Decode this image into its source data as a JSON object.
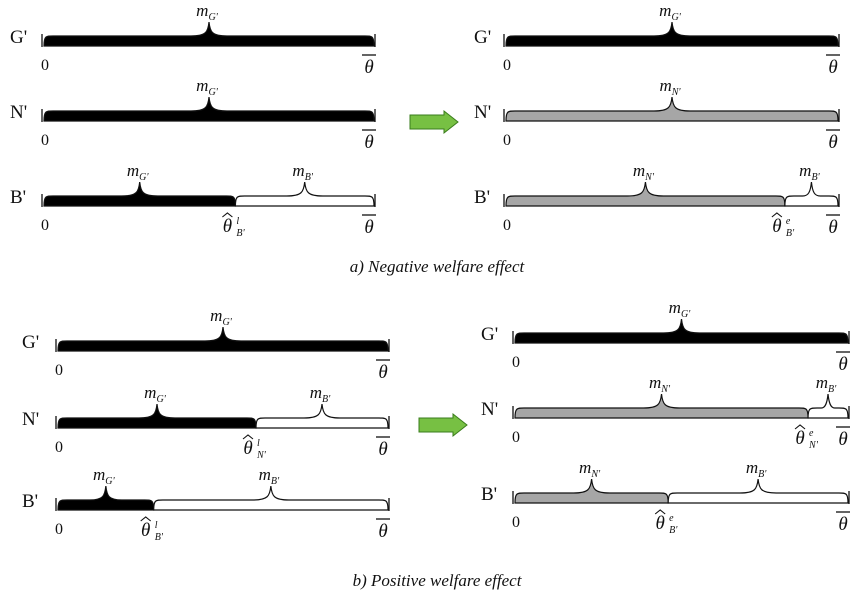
{
  "colors": {
    "black_segment": "#000000",
    "gray_segment": "#a6a6a6",
    "white_segment": "#ffffff",
    "arrow_fill": "#77c043",
    "arrow_stroke": "#3a7d1c"
  },
  "captions": {
    "a": "a)  Negative welfare effect",
    "b": "b)  Positive welfare effect"
  },
  "axis": {
    "zero": "0",
    "theta": "θ"
  },
  "panels": [
    {
      "id": "a-left",
      "rows": [
        {
          "label": "G'",
          "segments": [
            {
              "fill": "black",
              "m": "m",
              "sub": "G'",
              "start": 0,
              "end": 1
            }
          ],
          "threshold": null
        },
        {
          "label": "N'",
          "segments": [
            {
              "fill": "black",
              "m": "m",
              "sub": "G'",
              "start": 0,
              "end": 1
            }
          ],
          "threshold": null
        },
        {
          "label": "B'",
          "segments": [
            {
              "fill": "black",
              "m": "m",
              "sub": "G'",
              "start": 0,
              "end": 0.58
            },
            {
              "fill": "white",
              "m": "m",
              "sub": "B'",
              "start": 0.58,
              "end": 1
            }
          ],
          "threshold": {
            "sym": "θ",
            "sup": "l",
            "sub": "B'",
            "at": 0.58
          }
        }
      ]
    },
    {
      "id": "a-right",
      "rows": [
        {
          "label": "G'",
          "segments": [
            {
              "fill": "black",
              "m": "m",
              "sub": "G'",
              "start": 0,
              "end": 1
            }
          ],
          "threshold": null
        },
        {
          "label": "N'",
          "segments": [
            {
              "fill": "gray",
              "m": "m",
              "sub": "N'",
              "start": 0,
              "end": 1
            }
          ],
          "threshold": null
        },
        {
          "label": "B'",
          "segments": [
            {
              "fill": "gray",
              "m": "m",
              "sub": "N'",
              "start": 0,
              "end": 0.84
            },
            {
              "fill": "white",
              "m": "m",
              "sub": "B'",
              "start": 0.84,
              "end": 1
            }
          ],
          "threshold": {
            "sym": "θ",
            "sup": "e",
            "sub": "B'",
            "at": 0.84
          }
        }
      ]
    },
    {
      "id": "b-left",
      "rows": [
        {
          "label": "G'",
          "segments": [
            {
              "fill": "black",
              "m": "m",
              "sub": "G'",
              "start": 0,
              "end": 1
            }
          ],
          "threshold": null
        },
        {
          "label": "N'",
          "segments": [
            {
              "fill": "black",
              "m": "m",
              "sub": "G'",
              "start": 0,
              "end": 0.6
            },
            {
              "fill": "white",
              "m": "m",
              "sub": "B'",
              "start": 0.6,
              "end": 1
            }
          ],
          "threshold": {
            "sym": "θ",
            "sup": "l",
            "sub": "N'",
            "at": 0.6
          }
        },
        {
          "label": "B'",
          "segments": [
            {
              "fill": "black",
              "m": "m",
              "sub": "G'",
              "start": 0,
              "end": 0.29
            },
            {
              "fill": "white",
              "m": "m",
              "sub": "B'",
              "start": 0.29,
              "end": 1
            }
          ],
          "threshold": {
            "sym": "θ",
            "sup": "l",
            "sub": "B'",
            "at": 0.29
          }
        }
      ]
    },
    {
      "id": "b-right",
      "rows": [
        {
          "label": "G'",
          "segments": [
            {
              "fill": "black",
              "m": "m",
              "sub": "G'",
              "start": 0,
              "end": 1
            }
          ],
          "threshold": null
        },
        {
          "label": "N'",
          "segments": [
            {
              "fill": "gray",
              "m": "m",
              "sub": "N'",
              "start": 0,
              "end": 0.88
            },
            {
              "fill": "white",
              "m": "m",
              "sub": "B'",
              "start": 0.88,
              "end": 1
            }
          ],
          "threshold": {
            "sym": "θ",
            "sup": "e",
            "sub": "N'",
            "at": 0.88
          }
        },
        {
          "label": "B'",
          "segments": [
            {
              "fill": "gray",
              "m": "m",
              "sub": "N'",
              "start": 0,
              "end": 0.46
            },
            {
              "fill": "white",
              "m": "m",
              "sub": "B'",
              "start": 0.46,
              "end": 1
            }
          ],
          "threshold": {
            "sym": "θ",
            "sup": "e",
            "sub": "B'",
            "at": 0.46
          }
        }
      ]
    }
  ]
}
